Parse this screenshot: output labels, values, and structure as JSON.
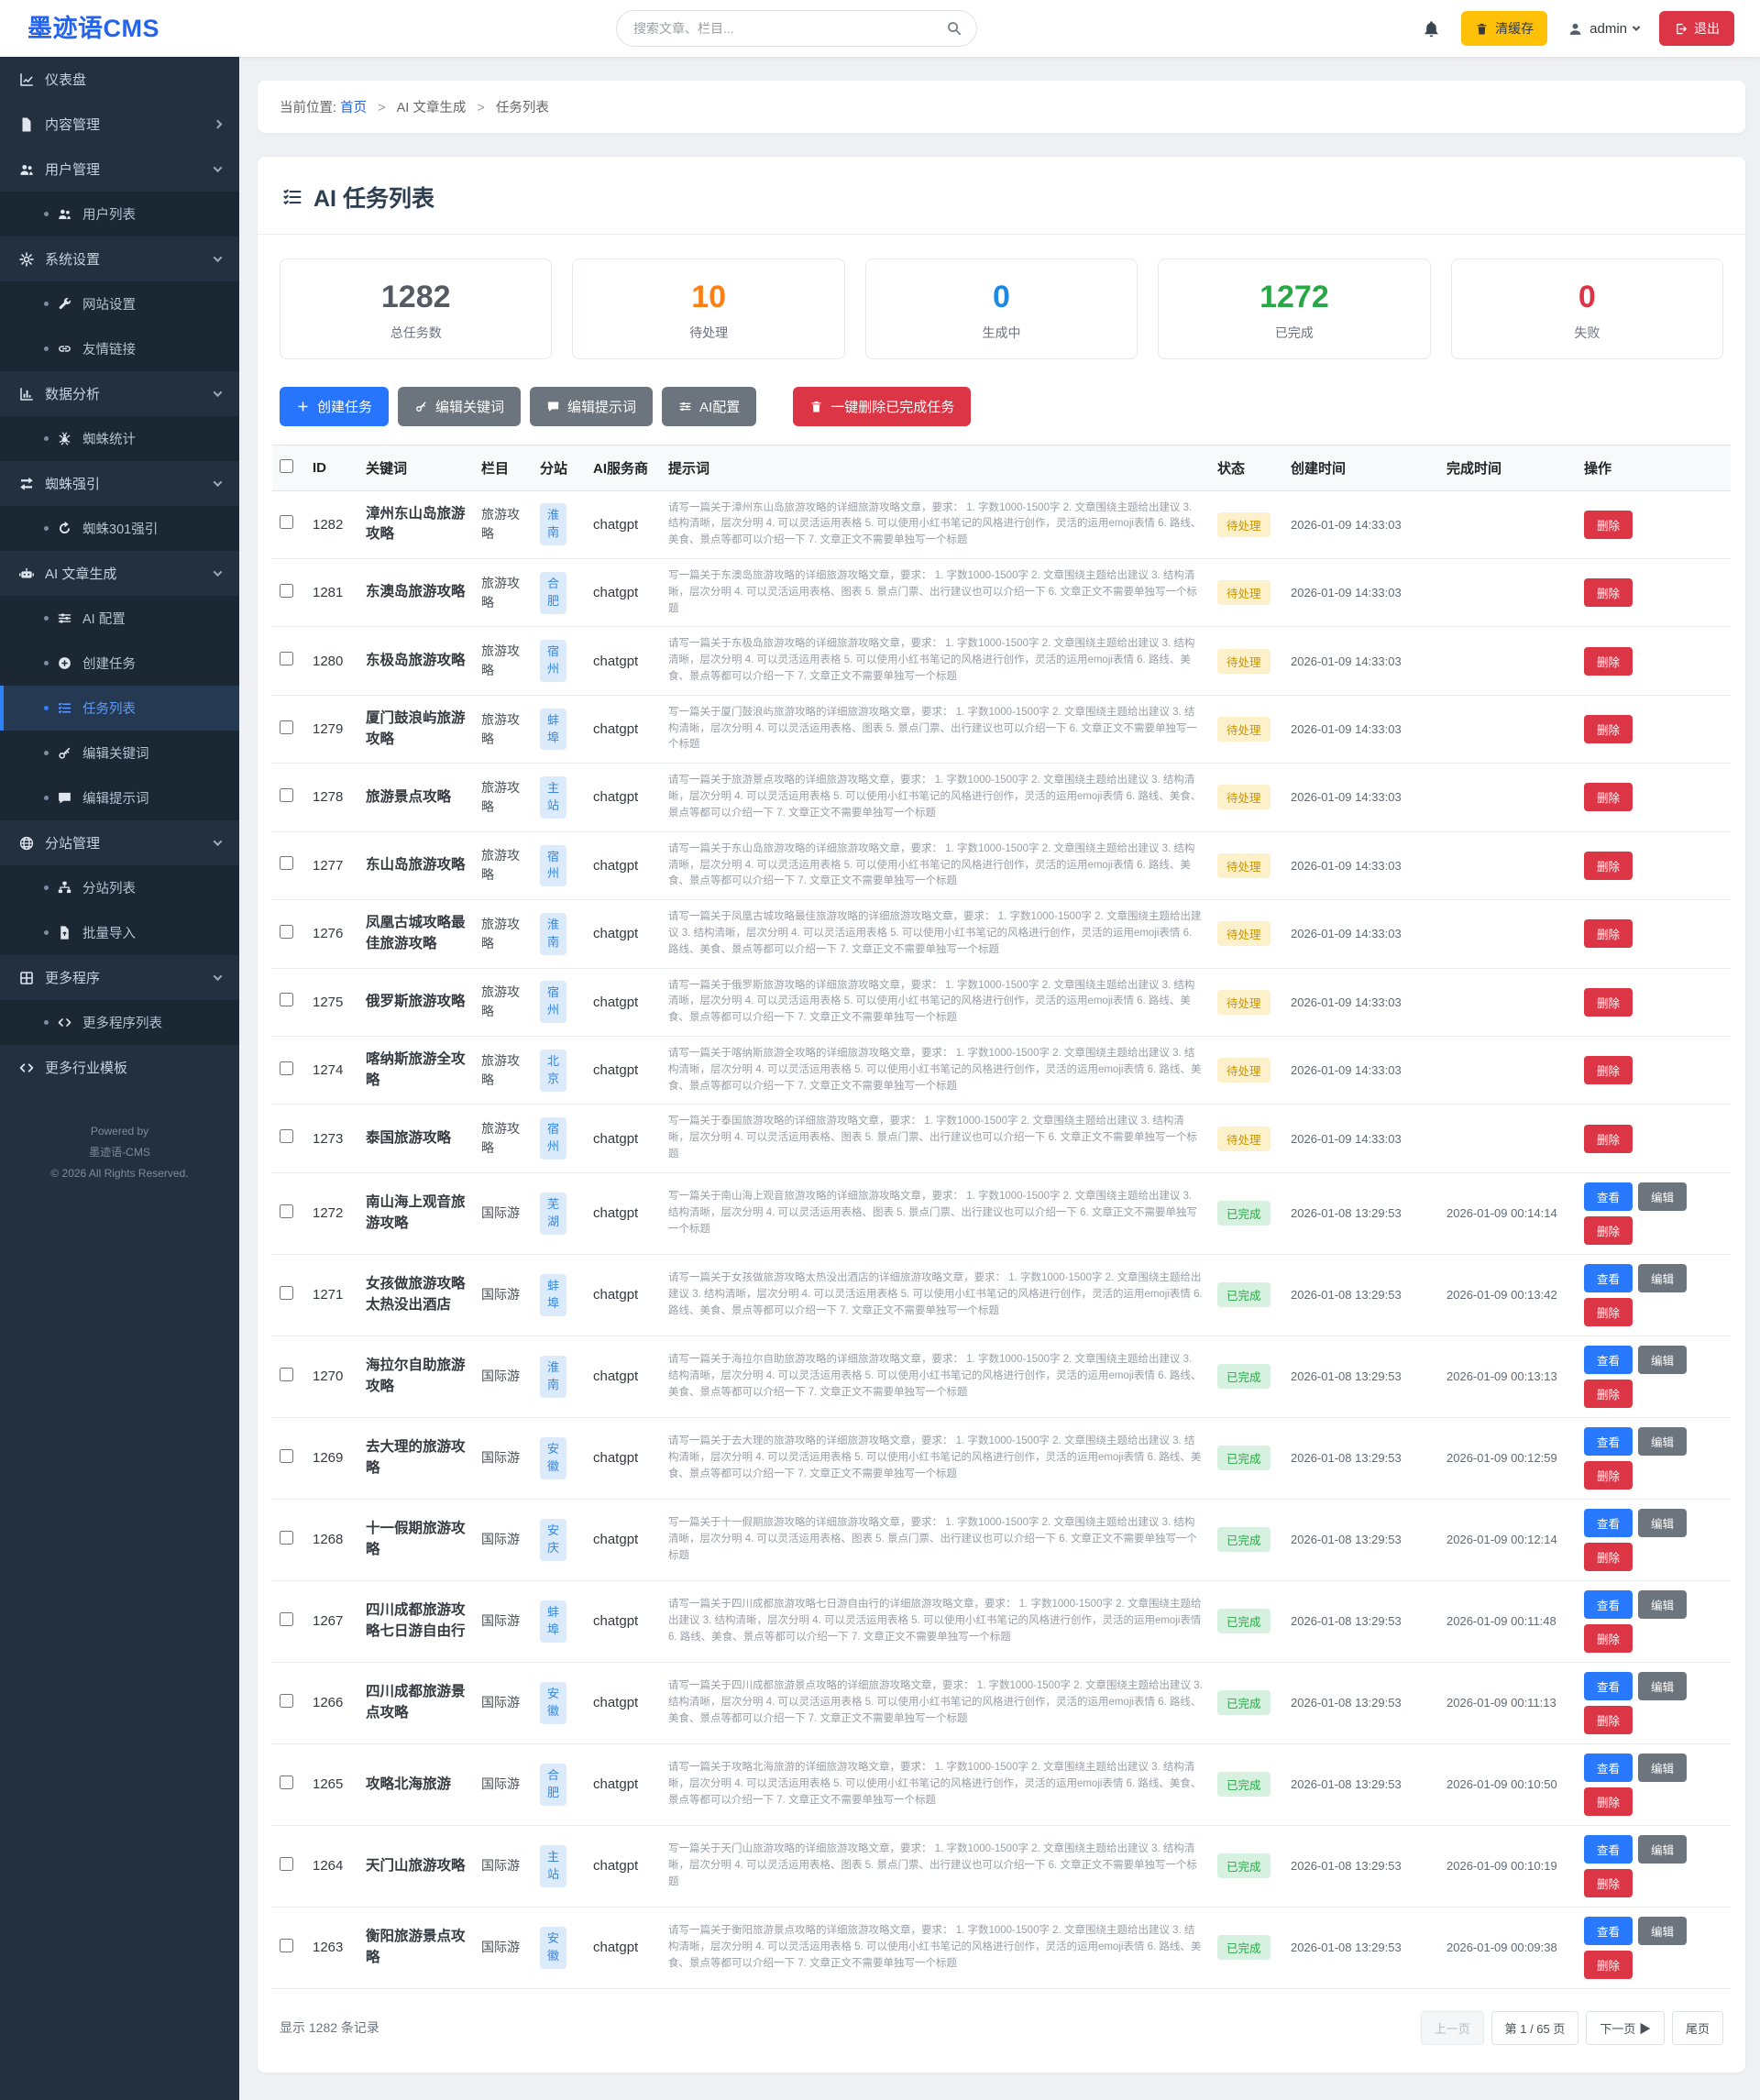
{
  "header": {
    "logo": "墨迹语CMS",
    "search_placeholder": "搜索文章、栏目...",
    "clear_cache_label": "清缓存",
    "username": "admin",
    "logout_label": "退出"
  },
  "sidebar": {
    "items": [
      {
        "label": "仪表盘",
        "icon": "chart-line"
      },
      {
        "label": "内容管理",
        "icon": "file",
        "chevron": "right"
      },
      {
        "label": "用户管理",
        "icon": "users",
        "chevron": "down",
        "children": [
          {
            "label": "用户列表",
            "icon": "users"
          }
        ]
      },
      {
        "label": "系统设置",
        "icon": "gear",
        "chevron": "down",
        "children": [
          {
            "label": "网站设置",
            "icon": "wrench"
          },
          {
            "label": "友情链接",
            "icon": "link"
          }
        ]
      },
      {
        "label": "数据分析",
        "icon": "chart-bar",
        "chevron": "down",
        "children": [
          {
            "label": "蜘蛛统计",
            "icon": "spider"
          }
        ]
      },
      {
        "label": "蜘蛛强引",
        "icon": "exchange",
        "chevron": "down",
        "children": [
          {
            "label": "蜘蛛301强引",
            "icon": "redo"
          }
        ]
      },
      {
        "label": "AI 文章生成",
        "icon": "robot",
        "chevron": "down",
        "children": [
          {
            "label": "AI 配置",
            "icon": "sliders"
          },
          {
            "label": "创建任务",
            "icon": "plus-circle"
          },
          {
            "label": "任务列表",
            "icon": "list",
            "active": true
          },
          {
            "label": "编辑关键词",
            "icon": "key"
          },
          {
            "label": "编辑提示词",
            "icon": "comment"
          }
        ]
      },
      {
        "label": "分站管理",
        "icon": "globe",
        "chevron": "down",
        "children": [
          {
            "label": "分站列表",
            "icon": "sitemap"
          },
          {
            "label": "批量导入",
            "icon": "file-import"
          }
        ]
      },
      {
        "label": "更多程序",
        "icon": "grid",
        "chevron": "down",
        "children": [
          {
            "label": "更多程序列表",
            "icon": "code"
          }
        ]
      },
      {
        "label": "更多行业模板",
        "icon": "code"
      }
    ],
    "footer": [
      "Powered by",
      "墨迹语-CMS",
      "© 2026 All Rights Reserved."
    ]
  },
  "breadcrumb": {
    "prefix": "当前位置:",
    "items": [
      "首页",
      "AI 文章生成",
      "任务列表"
    ]
  },
  "page": {
    "title": "AI 任务列表"
  },
  "stats": [
    {
      "value": "1282",
      "label": "总任务数",
      "color": "#545b62"
    },
    {
      "value": "10",
      "label": "待处理",
      "color": "#fd7e14"
    },
    {
      "value": "0",
      "label": "生成中",
      "color": "#1e88e5"
    },
    {
      "value": "1272",
      "label": "已完成",
      "color": "#28a745"
    },
    {
      "value": "0",
      "label": "失败",
      "color": "#dc3545"
    }
  ],
  "actions": [
    {
      "name": "create-task-button",
      "label": "创建任务",
      "icon": "plus",
      "style": "primary"
    },
    {
      "name": "edit-keywords-button",
      "label": "编辑关键词",
      "icon": "key",
      "style": "secondary"
    },
    {
      "name": "edit-prompts-button",
      "label": "编辑提示词",
      "icon": "comment",
      "style": "secondary"
    },
    {
      "name": "ai-config-button",
      "label": "AI配置",
      "icon": "sliders",
      "style": "secondary"
    },
    {
      "name": "delete-completed-button",
      "label": "一键删除已完成任务",
      "icon": "trash",
      "style": "danger",
      "gap": true
    }
  ],
  "table": {
    "columns": [
      "",
      "ID",
      "关键词",
      "栏目",
      "分站",
      "AI服务商",
      "提示词",
      "状态",
      "创建时间",
      "完成时间",
      "操作"
    ],
    "op_defs": {
      "view": "查看",
      "edit": "编辑",
      "delete": "删除"
    },
    "rows": [
      {
        "id": "1282",
        "keyword": "漳州东山岛旅游攻略",
        "category": "旅游攻略",
        "site": "淮南",
        "provider": "chatgpt",
        "prompt": "请写一篇关于漳州东山岛旅游攻略的详细旅游攻略文章，要求： 1. 字数1000-1500字 2. 文章围绕主题给出建议 3. 结构清晰，层次分明 4. 可以灵活运用表格 5. 可以使用小红书笔记的风格进行创作，灵活的运用emoji表情 6. 路线、美食、景点等都可以介绍一下 7. 文章正文不需要单独写一个标题",
        "status": "待处理",
        "created": "2026-01-09 14:33:03",
        "completed": "",
        "ops": [
          "delete"
        ]
      },
      {
        "id": "1281",
        "keyword": "东澳岛旅游攻略",
        "category": "旅游攻略",
        "site": "合肥",
        "provider": "chatgpt",
        "prompt": "写一篇关于东澳岛旅游攻略的详细旅游攻略文章，要求： 1. 字数1000-1500字 2. 文章围绕主题给出建议 3. 结构清晰，层次分明 4. 可以灵活运用表格、图表 5. 景点门票、出行建议也可以介绍一下 6. 文章正文不需要单独写一个标题",
        "status": "待处理",
        "created": "2026-01-09 14:33:03",
        "completed": "",
        "ops": [
          "delete"
        ]
      },
      {
        "id": "1280",
        "keyword": "东极岛旅游攻略",
        "category": "旅游攻略",
        "site": "宿州",
        "provider": "chatgpt",
        "prompt": "请写一篇关于东极岛旅游攻略的详细旅游攻略文章，要求： 1. 字数1000-1500字 2. 文章围绕主题给出建议 3. 结构清晰，层次分明 4. 可以灵活运用表格 5. 可以使用小红书笔记的风格进行创作，灵活的运用emoji表情 6. 路线、美食、景点等都可以介绍一下 7. 文章正文不需要单独写一个标题",
        "status": "待处理",
        "created": "2026-01-09 14:33:03",
        "completed": "",
        "ops": [
          "delete"
        ]
      },
      {
        "id": "1279",
        "keyword": "厦门鼓浪屿旅游攻略",
        "category": "旅游攻略",
        "site": "蚌埠",
        "provider": "chatgpt",
        "prompt": "写一篇关于厦门鼓浪屿旅游攻略的详细旅游攻略文章，要求： 1. 字数1000-1500字 2. 文章围绕主题给出建议 3. 结构清晰，层次分明 4. 可以灵活运用表格、图表 5. 景点门票、出行建议也可以介绍一下 6. 文章正文不需要单独写一个标题",
        "status": "待处理",
        "created": "2026-01-09 14:33:03",
        "completed": "",
        "ops": [
          "delete"
        ]
      },
      {
        "id": "1278",
        "keyword": "旅游景点攻略",
        "category": "旅游攻略",
        "site": "主站",
        "provider": "chatgpt",
        "prompt": "请写一篇关于旅游景点攻略的详细旅游攻略文章，要求： 1. 字数1000-1500字 2. 文章围绕主题给出建议 3. 结构清晰，层次分明 4. 可以灵活运用表格 5. 可以使用小红书笔记的风格进行创作，灵活的运用emoji表情 6. 路线、美食、景点等都可以介绍一下 7. 文章正文不需要单独写一个标题",
        "status": "待处理",
        "created": "2026-01-09 14:33:03",
        "completed": "",
        "ops": [
          "delete"
        ]
      },
      {
        "id": "1277",
        "keyword": "东山岛旅游攻略",
        "category": "旅游攻略",
        "site": "宿州",
        "provider": "chatgpt",
        "prompt": "请写一篇关于东山岛旅游攻略的详细旅游攻略文章，要求： 1. 字数1000-1500字 2. 文章围绕主题给出建议 3. 结构清晰，层次分明 4. 可以灵活运用表格 5. 可以使用小红书笔记的风格进行创作，灵活的运用emoji表情 6. 路线、美食、景点等都可以介绍一下 7. 文章正文不需要单独写一个标题",
        "status": "待处理",
        "created": "2026-01-09 14:33:03",
        "completed": "",
        "ops": [
          "delete"
        ]
      },
      {
        "id": "1276",
        "keyword": "凤凰古城攻略最佳旅游攻略",
        "category": "旅游攻略",
        "site": "淮南",
        "provider": "chatgpt",
        "prompt": "请写一篇关于凤凰古城攻略最佳旅游攻略的详细旅游攻略文章，要求： 1. 字数1000-1500字 2. 文章围绕主题给出建议 3. 结构清晰，层次分明 4. 可以灵活运用表格 5. 可以使用小红书笔记的风格进行创作，灵活的运用emoji表情 6. 路线、美食、景点等都可以介绍一下 7. 文章正文不需要单独写一个标题",
        "status": "待处理",
        "created": "2026-01-09 14:33:03",
        "completed": "",
        "ops": [
          "delete"
        ]
      },
      {
        "id": "1275",
        "keyword": "俄罗斯旅游攻略",
        "category": "旅游攻略",
        "site": "宿州",
        "provider": "chatgpt",
        "prompt": "请写一篇关于俄罗斯旅游攻略的详细旅游攻略文章，要求： 1. 字数1000-1500字 2. 文章围绕主题给出建议 3. 结构清晰，层次分明 4. 可以灵活运用表格 5. 可以使用小红书笔记的风格进行创作，灵活的运用emoji表情 6. 路线、美食、景点等都可以介绍一下 7. 文章正文不需要单独写一个标题",
        "status": "待处理",
        "created": "2026-01-09 14:33:03",
        "completed": "",
        "ops": [
          "delete"
        ]
      },
      {
        "id": "1274",
        "keyword": "喀纳斯旅游全攻略",
        "category": "旅游攻略",
        "site": "北京",
        "provider": "chatgpt",
        "prompt": "请写一篇关于喀纳斯旅游全攻略的详细旅游攻略文章，要求： 1. 字数1000-1500字 2. 文章围绕主题给出建议 3. 结构清晰，层次分明 4. 可以灵活运用表格 5. 可以使用小红书笔记的风格进行创作，灵活的运用emoji表情 6. 路线、美食、景点等都可以介绍一下 7. 文章正文不需要单独写一个标题",
        "status": "待处理",
        "created": "2026-01-09 14:33:03",
        "completed": "",
        "ops": [
          "delete"
        ]
      },
      {
        "id": "1273",
        "keyword": "泰国旅游攻略",
        "category": "旅游攻略",
        "site": "宿州",
        "provider": "chatgpt",
        "prompt": "写一篇关于泰国旅游攻略的详细旅游攻略文章，要求： 1. 字数1000-1500字 2. 文章围绕主题给出建议 3. 结构清晰，层次分明 4. 可以灵活运用表格、图表 5. 景点门票、出行建议也可以介绍一下 6. 文章正文不需要单独写一个标题",
        "status": "待处理",
        "created": "2026-01-09 14:33:03",
        "completed": "",
        "ops": [
          "delete"
        ]
      },
      {
        "id": "1272",
        "keyword": "南山海上观音旅游攻略",
        "category": "国际游",
        "site": "芜湖",
        "provider": "chatgpt",
        "prompt": "写一篇关于南山海上观音旅游攻略的详细旅游攻略文章，要求： 1. 字数1000-1500字 2. 文章围绕主题给出建议 3. 结构清晰，层次分明 4. 可以灵活运用表格、图表 5. 景点门票、出行建议也可以介绍一下 6. 文章正文不需要单独写一个标题",
        "status": "已完成",
        "created": "2026-01-08 13:29:53",
        "completed": "2026-01-09 00:14:14",
        "ops": [
          "view",
          "edit",
          "delete"
        ]
      },
      {
        "id": "1271",
        "keyword": "女孩做旅游攻略太热没出酒店",
        "category": "国际游",
        "site": "蚌埠",
        "provider": "chatgpt",
        "prompt": "请写一篇关于女孩做旅游攻略太热没出酒店的详细旅游攻略文章，要求： 1. 字数1000-1500字 2. 文章围绕主题给出建议 3. 结构清晰，层次分明 4. 可以灵活运用表格 5. 可以使用小红书笔记的风格进行创作，灵活的运用emoji表情 6. 路线、美食、景点等都可以介绍一下 7. 文章正文不需要单独写一个标题",
        "status": "已完成",
        "created": "2026-01-08 13:29:53",
        "completed": "2026-01-09 00:13:42",
        "ops": [
          "view",
          "edit",
          "delete"
        ]
      },
      {
        "id": "1270",
        "keyword": "海拉尔自助旅游攻略",
        "category": "国际游",
        "site": "淮南",
        "provider": "chatgpt",
        "prompt": "请写一篇关于海拉尔自助旅游攻略的详细旅游攻略文章，要求： 1. 字数1000-1500字 2. 文章围绕主题给出建议 3. 结构清晰，层次分明 4. 可以灵活运用表格 5. 可以使用小红书笔记的风格进行创作，灵活的运用emoji表情 6. 路线、美食、景点等都可以介绍一下 7. 文章正文不需要单独写一个标题",
        "status": "已完成",
        "created": "2026-01-08 13:29:53",
        "completed": "2026-01-09 00:13:13",
        "ops": [
          "view",
          "edit",
          "delete"
        ]
      },
      {
        "id": "1269",
        "keyword": "去大理的旅游攻略",
        "category": "国际游",
        "site": "安徽",
        "provider": "chatgpt",
        "prompt": "请写一篇关于去大理的旅游攻略的详细旅游攻略文章，要求： 1. 字数1000-1500字 2. 文章围绕主题给出建议 3. 结构清晰，层次分明 4. 可以灵活运用表格 5. 可以使用小红书笔记的风格进行创作，灵活的运用emoji表情 6. 路线、美食、景点等都可以介绍一下 7. 文章正文不需要单独写一个标题",
        "status": "已完成",
        "created": "2026-01-08 13:29:53",
        "completed": "2026-01-09 00:12:59",
        "ops": [
          "view",
          "edit",
          "delete"
        ]
      },
      {
        "id": "1268",
        "keyword": "十一假期旅游攻略",
        "category": "国际游",
        "site": "安庆",
        "provider": "chatgpt",
        "prompt": "写一篇关于十一假期旅游攻略的详细旅游攻略文章，要求： 1. 字数1000-1500字 2. 文章围绕主题给出建议 3. 结构清晰，层次分明 4. 可以灵活运用表格、图表 5. 景点门票、出行建议也可以介绍一下 6. 文章正文不需要单独写一个标题",
        "status": "已完成",
        "created": "2026-01-08 13:29:53",
        "completed": "2026-01-09 00:12:14",
        "ops": [
          "view",
          "edit",
          "delete"
        ]
      },
      {
        "id": "1267",
        "keyword": "四川成都旅游攻略七日游自由行",
        "category": "国际游",
        "site": "蚌埠",
        "provider": "chatgpt",
        "prompt": "请写一篇关于四川成都旅游攻略七日游自由行的详细旅游攻略文章，要求： 1. 字数1000-1500字 2. 文章围绕主题给出建议 3. 结构清晰，层次分明 4. 可以灵活运用表格 5. 可以使用小红书笔记的风格进行创作，灵活的运用emoji表情 6. 路线、美食、景点等都可以介绍一下 7. 文章正文不需要单独写一个标题",
        "status": "已完成",
        "created": "2026-01-08 13:29:53",
        "completed": "2026-01-09 00:11:48",
        "ops": [
          "view",
          "edit",
          "delete"
        ]
      },
      {
        "id": "1266",
        "keyword": "四川成都旅游景点攻略",
        "category": "国际游",
        "site": "安徽",
        "provider": "chatgpt",
        "prompt": "请写一篇关于四川成都旅游景点攻略的详细旅游攻略文章，要求： 1. 字数1000-1500字 2. 文章围绕主题给出建议 3. 结构清晰，层次分明 4. 可以灵活运用表格 5. 可以使用小红书笔记的风格进行创作，灵活的运用emoji表情 6. 路线、美食、景点等都可以介绍一下 7. 文章正文不需要单独写一个标题",
        "status": "已完成",
        "created": "2026-01-08 13:29:53",
        "completed": "2026-01-09 00:11:13",
        "ops": [
          "view",
          "edit",
          "delete"
        ]
      },
      {
        "id": "1265",
        "keyword": "攻略北海旅游",
        "category": "国际游",
        "site": "合肥",
        "provider": "chatgpt",
        "prompt": "请写一篇关于攻略北海旅游的详细旅游攻略文章，要求： 1. 字数1000-1500字 2. 文章围绕主题给出建议 3. 结构清晰，层次分明 4. 可以灵活运用表格 5. 可以使用小红书笔记的风格进行创作，灵活的运用emoji表情 6. 路线、美食、景点等都可以介绍一下 7. 文章正文不需要单独写一个标题",
        "status": "已完成",
        "created": "2026-01-08 13:29:53",
        "completed": "2026-01-09 00:10:50",
        "ops": [
          "view",
          "edit",
          "delete"
        ]
      },
      {
        "id": "1264",
        "keyword": "天门山旅游攻略",
        "category": "国际游",
        "site": "主站",
        "provider": "chatgpt",
        "prompt": "写一篇关于天门山旅游攻略的详细旅游攻略文章，要求： 1. 字数1000-1500字 2. 文章围绕主题给出建议 3. 结构清晰，层次分明 4. 可以灵活运用表格、图表 5. 景点门票、出行建议也可以介绍一下 6. 文章正文不需要单独写一个标题",
        "status": "已完成",
        "created": "2026-01-08 13:29:53",
        "completed": "2026-01-09 00:10:19",
        "ops": [
          "view",
          "edit",
          "delete"
        ]
      },
      {
        "id": "1263",
        "keyword": "衡阳旅游景点攻略",
        "category": "国际游",
        "site": "安徽",
        "provider": "chatgpt",
        "prompt": "请写一篇关于衡阳旅游景点攻略的详细旅游攻略文章，要求： 1. 字数1000-1500字 2. 文章围绕主题给出建议 3. 结构清晰，层次分明 4. 可以灵活运用表格 5. 可以使用小红书笔记的风格进行创作，灵活的运用emoji表情 6. 路线、美食、景点等都可以介绍一下 7. 文章正文不需要单独写一个标题",
        "status": "已完成",
        "created": "2026-01-08 13:29:53",
        "completed": "2026-01-09 00:09:38",
        "ops": [
          "view",
          "edit",
          "delete"
        ]
      }
    ]
  },
  "pagination": {
    "summary": "显示 1282 条记录",
    "prev": "上一页",
    "page_info": "第 1 / 65 页",
    "next": "下一页 ▶",
    "last": "尾页"
  }
}
